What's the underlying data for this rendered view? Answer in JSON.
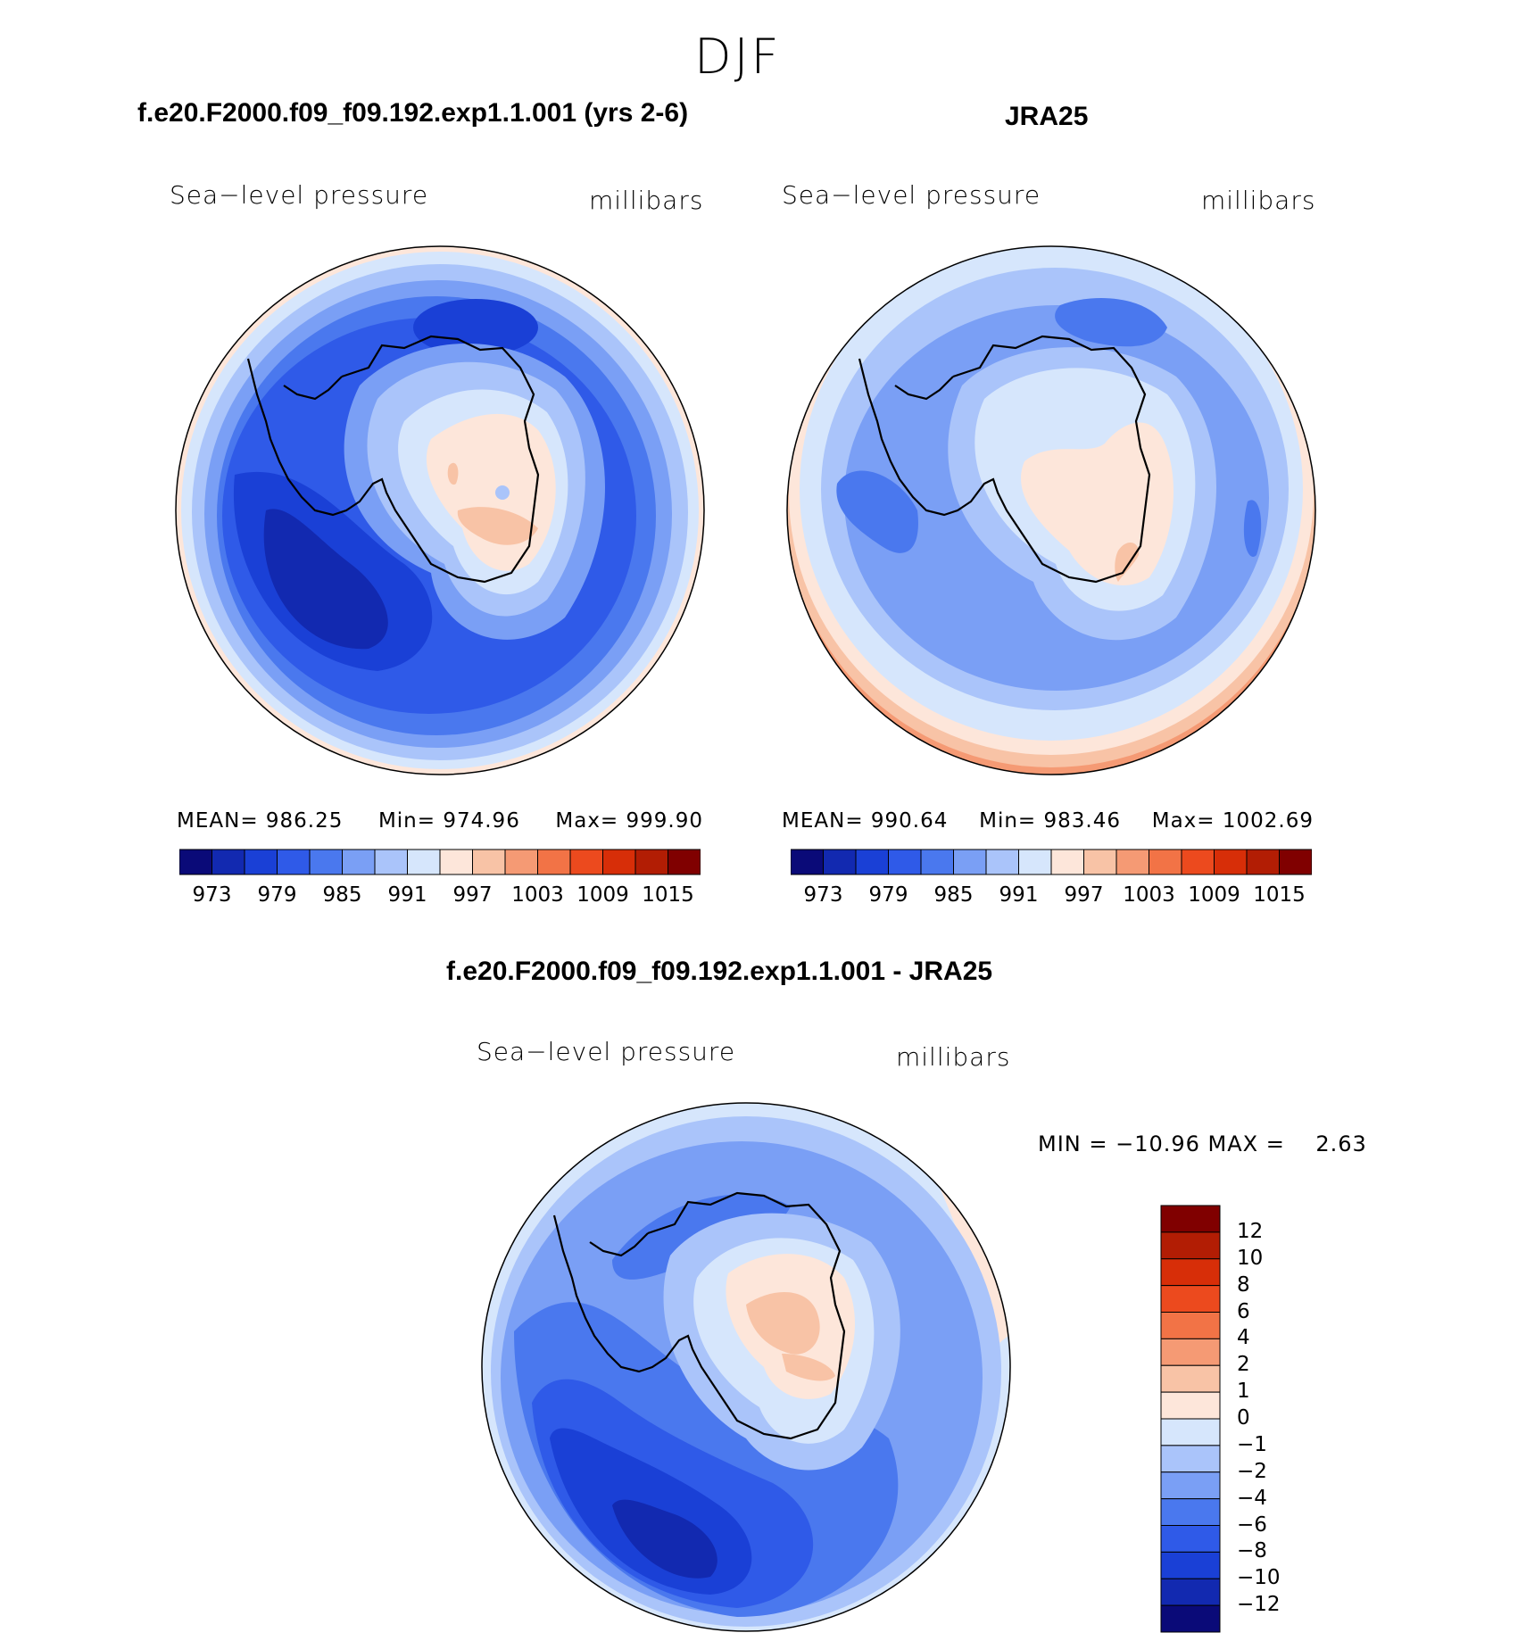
{
  "figure": {
    "title": "DJF"
  },
  "panels": [
    {
      "id": "model",
      "title": "f.e20.F2000.f09_f09.192.exp1.1.001 (yrs 2-6)",
      "left_label": "Sea−level pressure",
      "right_label": "millibars",
      "stats": {
        "mean_label": "MEAN=",
        "mean": "986.25",
        "min_label": "Min=",
        "min": "974.96",
        "max_label": "Max=",
        "max": "999.90"
      }
    },
    {
      "id": "obs",
      "title": "JRA25",
      "left_label": "Sea−level pressure",
      "right_label": "millibars",
      "stats": {
        "mean_label": "MEAN=",
        "mean": "990.64",
        "min_label": "Min=",
        "min": "983.46",
        "max_label": "Max=",
        "max": "1002.69"
      }
    },
    {
      "id": "diff",
      "title": "f.e20.F2000.f09_f09.192.exp1.1.001 - JRA25",
      "left_label": "Sea−level pressure",
      "right_label": "millibars",
      "minmax": "MIN = −10.96 MAX =    2.63"
    }
  ],
  "colorbars": {
    "abs_colors": [
      "#0a0a78",
      "#1229b0",
      "#1a40d6",
      "#2f5ae8",
      "#4a78ee",
      "#7a9ff5",
      "#aac4fa",
      "#d6e6fc",
      "#fde6da",
      "#f8c3a6",
      "#f59a74",
      "#f27346",
      "#ec4a1e",
      "#d72e08",
      "#b21d04",
      "#800000"
    ],
    "abs_ticks": [
      "973",
      "979",
      "985",
      "991",
      "997",
      "1003",
      "1009",
      "1015"
    ],
    "diff_colors": [
      "#800000",
      "#b21d04",
      "#d72e08",
      "#ec4a1e",
      "#f27346",
      "#f59a74",
      "#f8c3a6",
      "#fde6da",
      "#d6e6fc",
      "#aac4fa",
      "#7a9ff5",
      "#4a78ee",
      "#2f5ae8",
      "#1a40d6",
      "#1229b0",
      "#0a0a78"
    ],
    "diff_ticks": [
      "12",
      "10",
      "8",
      "6",
      "4",
      "2",
      "1",
      "0",
      "−1",
      "−2",
      "−4",
      "−6",
      "−8",
      "−10",
      "−12"
    ]
  }
}
